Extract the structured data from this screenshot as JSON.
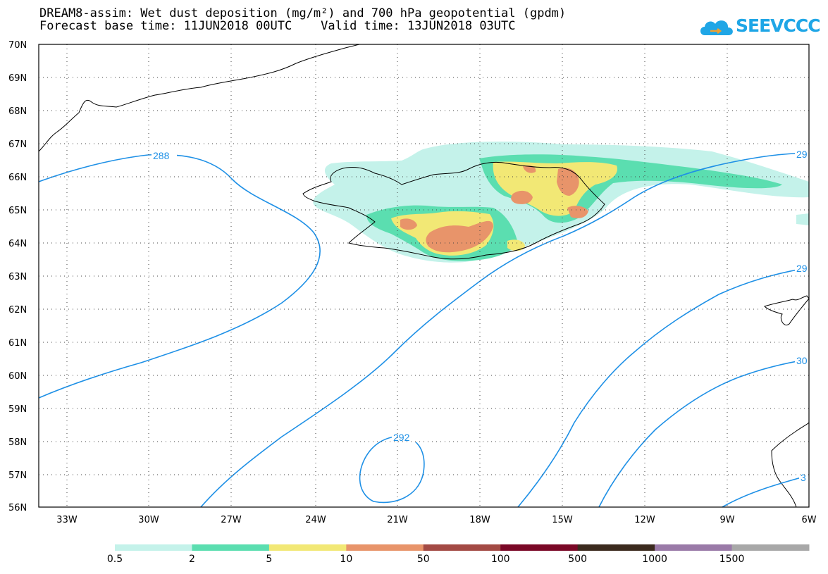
{
  "title": {
    "line1": "DREAM8-assim: Wet dust deposition (mg/m²) and 700 hPa geopotential (gpdm)",
    "line2": "Forecast base time: 11JUN2018 00UTC    Valid time: 13JUN2018 03UTC"
  },
  "logo": {
    "text": "SEEVCCC",
    "icon": "cloud-icon"
  },
  "map": {
    "lat_ticks": [
      "70N",
      "69N",
      "68N",
      "67N",
      "66N",
      "65N",
      "64N",
      "63N",
      "62N",
      "61N",
      "60N",
      "59N",
      "58N",
      "57N",
      "56N"
    ],
    "lon_ticks": [
      "33W",
      "30W",
      "27W",
      "24W",
      "21W",
      "18W",
      "15W",
      "12W",
      "9W",
      "6W"
    ],
    "contour_labels": [
      "288",
      "292",
      "29",
      "29",
      "30",
      "3"
    ],
    "contour_color": "#1e90e6"
  },
  "colorbar": {
    "labels": [
      "0.5",
      "2",
      "5",
      "10",
      "50",
      "100",
      "500",
      "1000",
      "1500"
    ],
    "colors": [
      "#c4f2ea",
      "#5bdeb0",
      "#f2e875",
      "#e8946a",
      "#a34a44",
      "#7a0826",
      "#3b2a1e",
      "#9a7aa8",
      "#a8a8a8"
    ]
  }
}
